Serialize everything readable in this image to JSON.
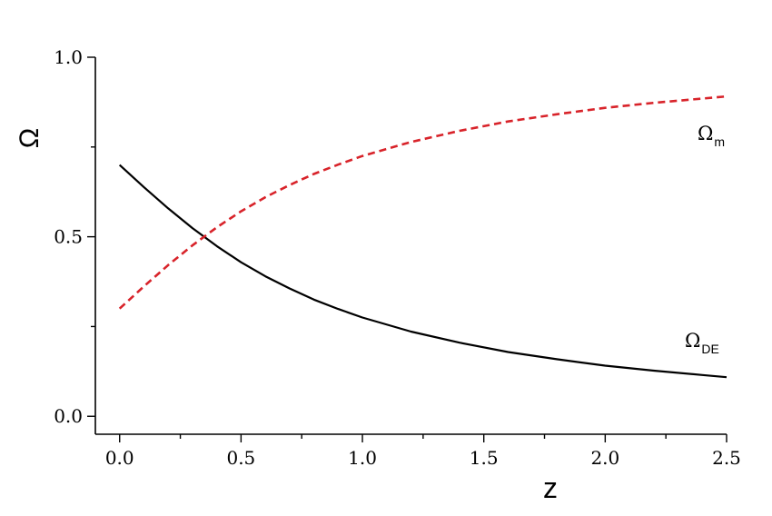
{
  "chart_data": {
    "type": "line",
    "xlabel": "z",
    "ylabel": "Ω",
    "xlim": [
      -0.1,
      2.5
    ],
    "ylim": [
      -0.05,
      1.0
    ],
    "xticks": [
      "0.0",
      "0.5",
      "1.0",
      "1.5",
      "2.0",
      "2.5"
    ],
    "yticks": [
      "0.0",
      "0.5",
      "1.0"
    ],
    "grid": false,
    "series": [
      {
        "label_main": "Ω",
        "label_sub": "DE",
        "color": "#000000",
        "style": "solid",
        "x": [
          0.0,
          0.1,
          0.2,
          0.3,
          0.4,
          0.5,
          0.6,
          0.7,
          0.8,
          0.9,
          1.0,
          1.2,
          1.4,
          1.6,
          1.8,
          2.0,
          2.2,
          2.4,
          2.5
        ],
        "y": [
          0.7,
          0.638,
          0.579,
          0.524,
          0.474,
          0.429,
          0.39,
          0.356,
          0.325,
          0.299,
          0.275,
          0.236,
          0.205,
          0.179,
          0.159,
          0.141,
          0.127,
          0.115,
          0.109
        ]
      },
      {
        "label_main": "Ω",
        "label_sub": "m",
        "color": "#d8232a",
        "style": "dashed",
        "x": [
          0.0,
          0.1,
          0.2,
          0.3,
          0.4,
          0.5,
          0.6,
          0.7,
          0.8,
          0.9,
          1.0,
          1.2,
          1.4,
          1.6,
          1.8,
          2.0,
          2.2,
          2.4,
          2.5
        ],
        "y": [
          0.3,
          0.362,
          0.421,
          0.476,
          0.526,
          0.571,
          0.61,
          0.644,
          0.675,
          0.701,
          0.725,
          0.764,
          0.795,
          0.821,
          0.841,
          0.859,
          0.873,
          0.885,
          0.891
        ]
      }
    ]
  }
}
